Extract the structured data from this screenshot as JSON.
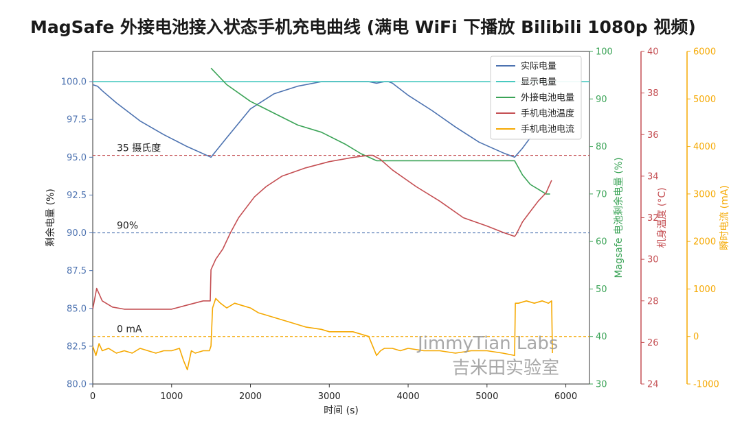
{
  "title": "MagSafe 外接电池接入状态手机充电曲线 (满电 WiFi 下播放 Bilibili 1080p 视频)",
  "watermark": {
    "line1": "JimmyTian Labs",
    "line2": "吉米田实验室"
  },
  "colors": {
    "actual": "#4c72b0",
    "display": "#48c9c0",
    "external": "#3aa356",
    "temp": "#c44e52",
    "current": "#f5a800"
  },
  "chart_data": {
    "type": "line",
    "xlabel": "时间 (s)",
    "xlim": [
      0,
      6300
    ],
    "xticks": [
      0,
      1000,
      2000,
      3000,
      4000,
      5000,
      6000
    ],
    "axes": {
      "left": {
        "label": "剩余电量 (%)",
        "lim": [
          80,
          102
        ],
        "ticks": [
          80.0,
          82.5,
          85.0,
          87.5,
          90.0,
          92.5,
          95.0,
          97.5,
          100.0
        ],
        "decimals": 1,
        "color": "#4c72b0"
      },
      "right1": {
        "label": "Magsafe 电池剩余电量 (%)",
        "lim": [
          30,
          100
        ],
        "ticks": [
          30,
          40,
          50,
          60,
          70,
          80,
          90,
          100
        ],
        "decimals": 0,
        "color": "#3aa356"
      },
      "right2": {
        "label": "机身温度 (°C)",
        "lim": [
          24,
          40
        ],
        "ticks": [
          24,
          26,
          28,
          30,
          32,
          34,
          36,
          38,
          40
        ],
        "decimals": 0,
        "color": "#c44e52"
      },
      "right3": {
        "label": "瞬时电流 (mA)",
        "lim": [
          -1000,
          6000
        ],
        "ticks": [
          -1000,
          0,
          1000,
          2000,
          3000,
          4000,
          5000,
          6000
        ],
        "decimals": 0,
        "color": "#f5a800"
      }
    },
    "legend_position": "top-right",
    "series": [
      {
        "name": "实际电量",
        "axis": "left",
        "color": "#4c72b0",
        "x": [
          0,
          60,
          120,
          300,
          600,
          900,
          1200,
          1500,
          1700,
          2000,
          2300,
          2600,
          2900,
          3000,
          3300,
          3500,
          3600,
          3700,
          3750,
          3800,
          4000,
          4300,
          4600,
          4900,
          5200,
          5350,
          5450,
          5550
        ],
        "y": [
          99.8,
          99.7,
          99.4,
          98.6,
          97.4,
          96.5,
          95.7,
          95.0,
          96.3,
          98.2,
          99.2,
          99.7,
          100.0,
          100.0,
          100.0,
          100.0,
          99.9,
          100.0,
          100.0,
          99.9,
          99.1,
          98.1,
          97.0,
          96.0,
          95.3,
          95.0,
          95.6,
          96.3
        ]
      },
      {
        "name": "显示电量",
        "axis": "left",
        "color": "#48c9c0",
        "x": [
          0,
          6300
        ],
        "y": [
          100.0,
          100.0
        ]
      },
      {
        "name": "外接电池电量",
        "axis": "right1",
        "color": "#3aa356",
        "x": [
          1500,
          1700,
          2000,
          2300,
          2600,
          2900,
          3200,
          3400,
          3600,
          3900,
          4200,
          4800,
          5350,
          5450,
          5550,
          5650,
          5750,
          5800
        ],
        "y": [
          96.5,
          93.0,
          89.5,
          87.0,
          84.5,
          83.0,
          80.5,
          78.5,
          77.0,
          77.0,
          77.0,
          77.0,
          77.0,
          74.0,
          72.0,
          71.0,
          70.0,
          70.0
        ]
      },
      {
        "name": "手机电池温度",
        "axis": "right2",
        "color": "#c44e52",
        "x": [
          0,
          50,
          120,
          250,
          400,
          700,
          1000,
          1200,
          1400,
          1490,
          1500,
          1560,
          1650,
          1750,
          1850,
          1950,
          2050,
          2200,
          2400,
          2700,
          3000,
          3300,
          3500,
          3550,
          3650,
          3800,
          4100,
          4400,
          4700,
          5000,
          5200,
          5350,
          5370,
          5450,
          5550,
          5650,
          5750,
          5820
        ],
        "y": [
          27.6,
          28.6,
          28.0,
          27.7,
          27.6,
          27.6,
          27.6,
          27.8,
          28.0,
          28.0,
          29.5,
          30.0,
          30.5,
          31.3,
          32.0,
          32.5,
          33.0,
          33.5,
          34.0,
          34.4,
          34.7,
          34.9,
          35.0,
          35.0,
          34.8,
          34.3,
          33.5,
          32.8,
          32.0,
          31.6,
          31.3,
          31.1,
          31.2,
          31.8,
          32.3,
          32.8,
          33.2,
          33.8
        ]
      },
      {
        "name": "手机电池电流",
        "axis": "right3",
        "color": "#f5a800",
        "x": [
          0,
          40,
          80,
          120,
          200,
          300,
          400,
          500,
          600,
          700,
          800,
          900,
          1000,
          1100,
          1150,
          1200,
          1250,
          1300,
          1400,
          1480,
          1500,
          1520,
          1560,
          1620,
          1700,
          1800,
          1900,
          2000,
          2100,
          2300,
          2500,
          2700,
          2900,
          3000,
          3100,
          3300,
          3500,
          3550,
          3600,
          3650,
          3700,
          3800,
          3900,
          4000,
          4200,
          4400,
          4600,
          4800,
          5000,
          5200,
          5350,
          5360,
          5400,
          5500,
          5600,
          5700,
          5780,
          5820,
          5830
        ],
        "y": [
          -200,
          -400,
          -150,
          -300,
          -250,
          -350,
          -300,
          -350,
          -250,
          -300,
          -350,
          -300,
          -300,
          -250,
          -500,
          -700,
          -300,
          -350,
          -300,
          -300,
          -200,
          600,
          800,
          700,
          600,
          700,
          650,
          600,
          500,
          400,
          300,
          200,
          150,
          100,
          100,
          100,
          0,
          -200,
          -400,
          -300,
          -250,
          -250,
          -300,
          -250,
          -300,
          -300,
          -350,
          -300,
          -300,
          -350,
          -400,
          700,
          700,
          750,
          700,
          750,
          700,
          750,
          -350
        ]
      }
    ],
    "reference_lines": [
      {
        "label": "35 摄氏度",
        "axis": "right2",
        "value": 35,
        "color": "#c44e52"
      },
      {
        "label": "90%",
        "axis": "left",
        "value": 90,
        "color": "#4c72b0"
      },
      {
        "label": "0 mA",
        "axis": "right3",
        "value": 0,
        "color": "#f5a800"
      }
    ]
  }
}
